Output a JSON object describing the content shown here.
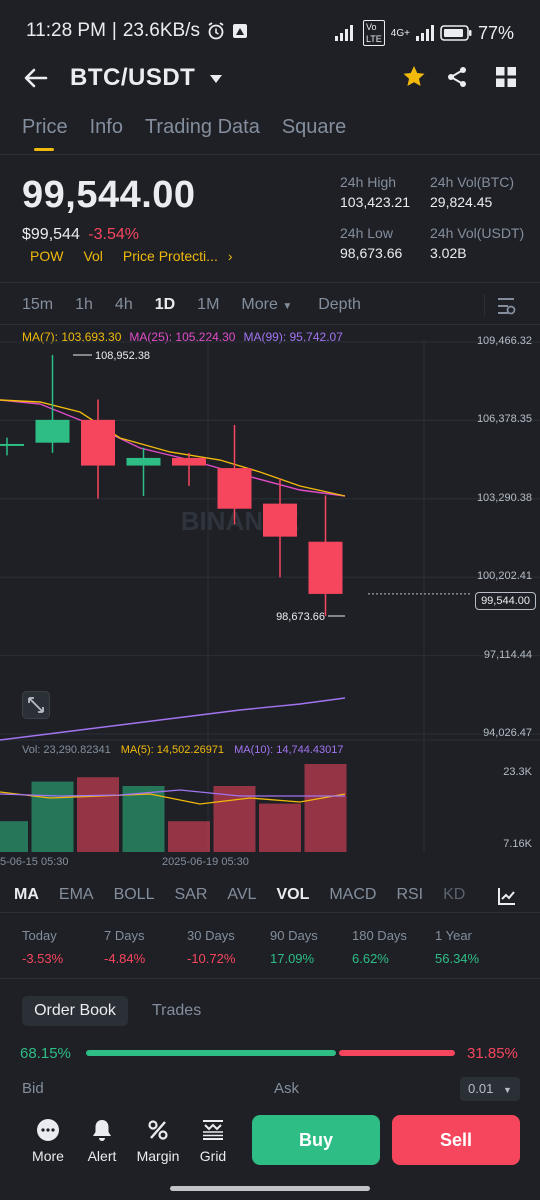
{
  "status_bar": {
    "time": "11:28 PM",
    "speed": "23.6KB/s",
    "network": "4G+",
    "battery": "77%"
  },
  "header": {
    "pair": "BTC/USDT"
  },
  "tabs": [
    {
      "label": "Price",
      "active": true
    },
    {
      "label": "Info",
      "active": false
    },
    {
      "label": "Trading Data",
      "active": false
    },
    {
      "label": "Square",
      "active": false
    }
  ],
  "price": {
    "last": "99,544.00",
    "usd": "$99,544",
    "change": "-3.54%",
    "tags": [
      "POW",
      "Vol",
      "Price Protecti..."
    ]
  },
  "stats": {
    "high_label": "24h High",
    "high": "103,423.21",
    "low_label": "24h Low",
    "low": "98,673.66",
    "vol_btc_label": "24h Vol(BTC)",
    "vol_btc": "29,824.45",
    "vol_usdt_label": "24h Vol(USDT)",
    "vol_usdt": "3.02B"
  },
  "intervals": [
    "15m",
    "1h",
    "4h",
    "1D",
    "1M",
    "More",
    "Depth"
  ],
  "ma": {
    "ma7": "MA(7): 103,693.30",
    "ma25": "MA(25): 105,224.30",
    "ma99": "MA(99): 95,742.07",
    "ma7_color": "#f0b90b",
    "ma25_color": "#e04cc8",
    "ma99_color": "#a274f0"
  },
  "chart_data": {
    "type": "candlestick",
    "y_axis": [
      "109,466.32",
      "106,378.35",
      "103,290.38",
      "100,202.41",
      "97,114.44",
      "94,026.47"
    ],
    "ylim": [
      94026.47,
      109466.32
    ],
    "current_price": "99,544.00",
    "high_marker": "108,952.38",
    "low_marker": "98,673.66",
    "candles": [
      {
        "o": 105400,
        "c": 105450,
        "h": 105700,
        "l": 105000,
        "up": true
      },
      {
        "o": 105500,
        "c": 106400,
        "h": 108952.38,
        "l": 105100,
        "up": true
      },
      {
        "o": 106400,
        "c": 104600,
        "h": 107200,
        "l": 103300,
        "up": false
      },
      {
        "o": 104600,
        "c": 104900,
        "h": 105300,
        "l": 103400,
        "up": true
      },
      {
        "o": 104900,
        "c": 104600,
        "h": 105100,
        "l": 103800,
        "up": false
      },
      {
        "o": 104500,
        "c": 102900,
        "h": 106200,
        "l": 102300,
        "up": false
      },
      {
        "o": 103100,
        "c": 101800,
        "h": 104100,
        "l": 100200,
        "up": false
      },
      {
        "o": 101600,
        "c": 99544,
        "h": 103423.21,
        "l": 98673.66,
        "up": false
      }
    ],
    "volume_label": "Vol: 23,290.82341",
    "vol_ma5": "MA(5): 14,502.26971",
    "vol_ma10": "MA(10): 14,744.43017",
    "vol_axis": [
      "23.3K",
      "7.16K"
    ],
    "dates": [
      "5-06-15 05:30",
      "2025-06-19 05:30"
    ]
  },
  "indicator_tabs": [
    "MA",
    "EMA",
    "BOLL",
    "SAR",
    "AVL",
    "VOL",
    "MACD",
    "RSI",
    "KD"
  ],
  "performance": [
    {
      "label": "Today",
      "value": "-3.53%",
      "up": false
    },
    {
      "label": "7 Days",
      "value": "-4.84%",
      "up": false
    },
    {
      "label": "30 Days",
      "value": "-10.72%",
      "up": false
    },
    {
      "label": "90 Days",
      "value": "17.09%",
      "up": true
    },
    {
      "label": "180 Days",
      "value": "6.62%",
      "up": true
    },
    {
      "label": "1 Year",
      "value": "56.34%",
      "up": true
    }
  ],
  "order_book": {
    "tab_order": "Order Book",
    "tab_trades": "Trades",
    "bid_pct": "68.15%",
    "ask_pct": "31.85%",
    "bid_label": "Bid",
    "ask_label": "Ask",
    "precision": "0.01"
  },
  "nav": {
    "more": "More",
    "alert": "Alert",
    "margin": "Margin",
    "grid": "Grid",
    "buy": "Buy",
    "sell": "Sell"
  },
  "watermark": "BINANCE"
}
